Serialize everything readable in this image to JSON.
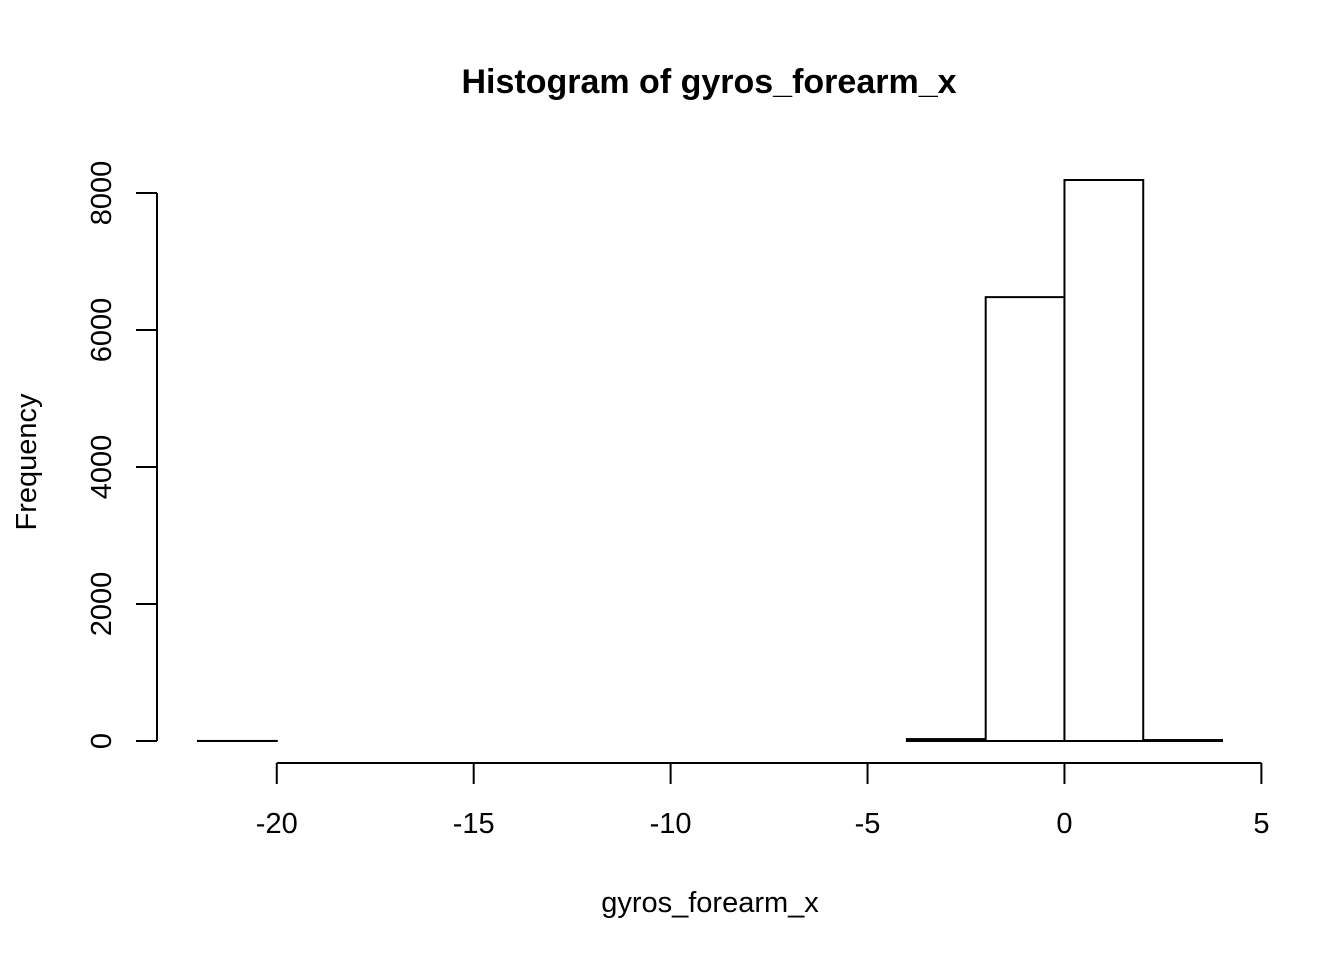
{
  "chart_data": {
    "type": "bar",
    "title": "Histogram of gyros_forearm_x",
    "xlabel": "gyros_forearm_x",
    "ylabel": "Frequency",
    "bins": [
      {
        "x0": -22,
        "x1": -20,
        "count": 1
      },
      {
        "x0": -20,
        "x1": -18,
        "count": 0
      },
      {
        "x0": -18,
        "x1": -16,
        "count": 0
      },
      {
        "x0": -16,
        "x1": -14,
        "count": 0
      },
      {
        "x0": -14,
        "x1": -12,
        "count": 0
      },
      {
        "x0": -12,
        "x1": -10,
        "count": 0
      },
      {
        "x0": -10,
        "x1": -8,
        "count": 0
      },
      {
        "x0": -8,
        "x1": -6,
        "count": 0
      },
      {
        "x0": -6,
        "x1": -4,
        "count": 0
      },
      {
        "x0": -4,
        "x1": -2,
        "count": 28
      },
      {
        "x0": -2,
        "x1": 0,
        "count": 6480
      },
      {
        "x0": 0,
        "x1": 2,
        "count": 8190
      },
      {
        "x0": 2,
        "x1": 4,
        "count": 14
      }
    ],
    "xlim": [
      -22,
      4
    ],
    "ylim": [
      0,
      8190
    ],
    "xticks": [
      -20,
      -15,
      -10,
      -5,
      0,
      5
    ],
    "xtick_labels": [
      "-20",
      "-15",
      "-10",
      "-5",
      "0",
      "5"
    ],
    "yticks": [
      0,
      2000,
      4000,
      6000,
      8000
    ],
    "ytick_labels": [
      "0",
      "2000",
      "4000",
      "6000",
      "8000"
    ],
    "grid": false,
    "bar_fill": "#ffffff",
    "bar_stroke": "#000000"
  }
}
